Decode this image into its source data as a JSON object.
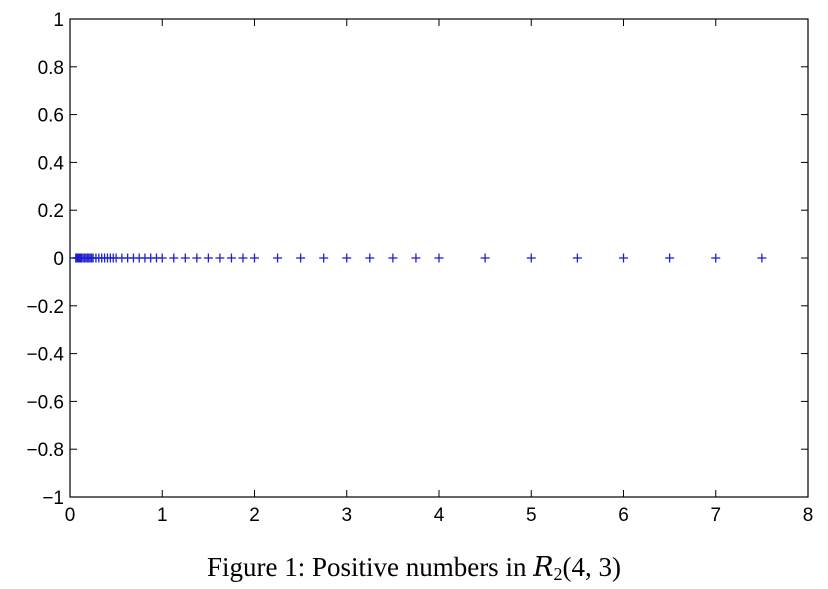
{
  "chart_data": {
    "type": "scatter",
    "marker": "+",
    "marker_color": "#1f1fd0",
    "xlim": [
      0,
      8
    ],
    "ylim": [
      -1,
      1
    ],
    "x_ticks": [
      "0",
      "1",
      "2",
      "3",
      "4",
      "5",
      "6",
      "7",
      "8"
    ],
    "y_ticks": [
      "1",
      "0.8",
      "0.6",
      "0.4",
      "0.2",
      "0",
      "−0.2",
      "−0.4",
      "−0.6",
      "−0.8",
      "−1"
    ],
    "series": [
      {
        "x": [
          0.0625,
          0.078125,
          0.09375,
          0.109375,
          0.125,
          0.15625,
          0.1875,
          0.21875,
          0.25,
          0.3125,
          0.375,
          0.4375,
          0.5,
          0.625,
          0.75,
          0.875,
          1.0,
          1.25,
          1.5,
          1.75,
          2.0,
          2.5,
          3.0,
          3.5,
          4.0,
          5.0,
          6.0,
          7.0,
          0.0703125,
          0.0859375,
          0.1015625,
          0.1171875,
          0.140625,
          0.171875,
          0.203125,
          0.234375,
          0.28125,
          0.34375,
          0.40625,
          0.46875,
          0.5625,
          0.6875,
          0.8125,
          0.9375,
          1.125,
          1.375,
          1.625,
          1.875,
          2.25,
          2.75,
          3.25,
          3.75,
          4.5,
          5.5,
          6.5,
          7.5
        ],
        "y": [
          0,
          0,
          0,
          0,
          0,
          0,
          0,
          0,
          0,
          0,
          0,
          0,
          0,
          0,
          0,
          0,
          0,
          0,
          0,
          0,
          0,
          0,
          0,
          0,
          0,
          0,
          0,
          0,
          0,
          0,
          0,
          0,
          0,
          0,
          0,
          0,
          0,
          0,
          0,
          0,
          0,
          0,
          0,
          0,
          0,
          0,
          0,
          0,
          0,
          0,
          0,
          0,
          0,
          0,
          0,
          0
        ]
      }
    ]
  },
  "caption": {
    "prefix": "Figure 1: Positive numbers in ",
    "symbol": "R",
    "subscript": "2",
    "args": "(4, 3)"
  }
}
